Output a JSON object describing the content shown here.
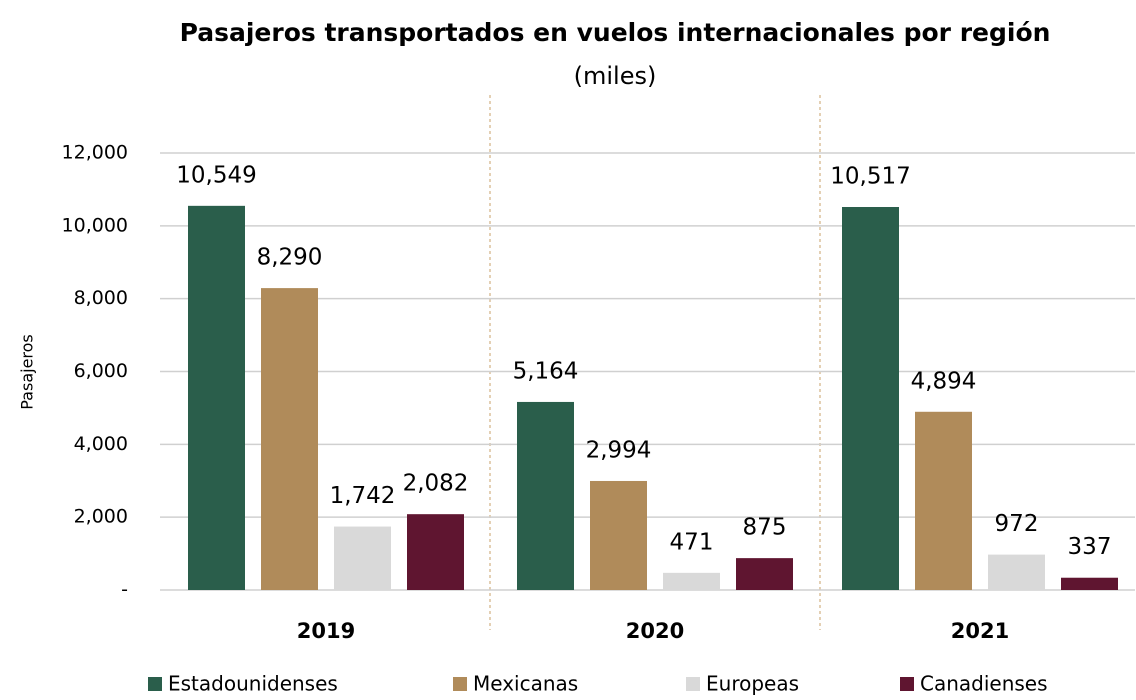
{
  "chart_data": {
    "type": "bar",
    "title": "Pasajeros transportados en vuelos internacionales por región",
    "subtitle": "(miles)",
    "y_label": "Pasajeros",
    "categories": [
      "2019",
      "2020",
      "2021"
    ],
    "series": [
      {
        "name": "Estadounidenses",
        "color": "#2a5e4b",
        "values": [
          10549,
          5164,
          10517
        ],
        "value_labels": [
          "10,549",
          "5,164",
          "10,517"
        ]
      },
      {
        "name": "Mexicanas",
        "color": "#b08b5a",
        "values": [
          8290,
          2994,
          4894
        ],
        "value_labels": [
          "8,290",
          "2,994",
          "4,894"
        ]
      },
      {
        "name": "Europeas",
        "color": "#d9d9d9",
        "values": [
          1742,
          471,
          972
        ],
        "value_labels": [
          "1,742",
          "471",
          "972"
        ]
      },
      {
        "name": "Canadienses",
        "color": "#5f1530",
        "values": [
          2082,
          875,
          337
        ],
        "value_labels": [
          "2,082",
          "875",
          "337"
        ]
      }
    ],
    "ylim": [
      0,
      12000
    ],
    "yticks": [
      {
        "value": 0,
        "label": "-"
      },
      {
        "value": 2000,
        "label": "2,000"
      },
      {
        "value": 4000,
        "label": "4,000"
      },
      {
        "value": 6000,
        "label": "6,000"
      },
      {
        "value": 8000,
        "label": "8,000"
      },
      {
        "value": 10000,
        "label": "10,000"
      },
      {
        "value": 12000,
        "label": "12,000"
      }
    ],
    "grid": true
  }
}
